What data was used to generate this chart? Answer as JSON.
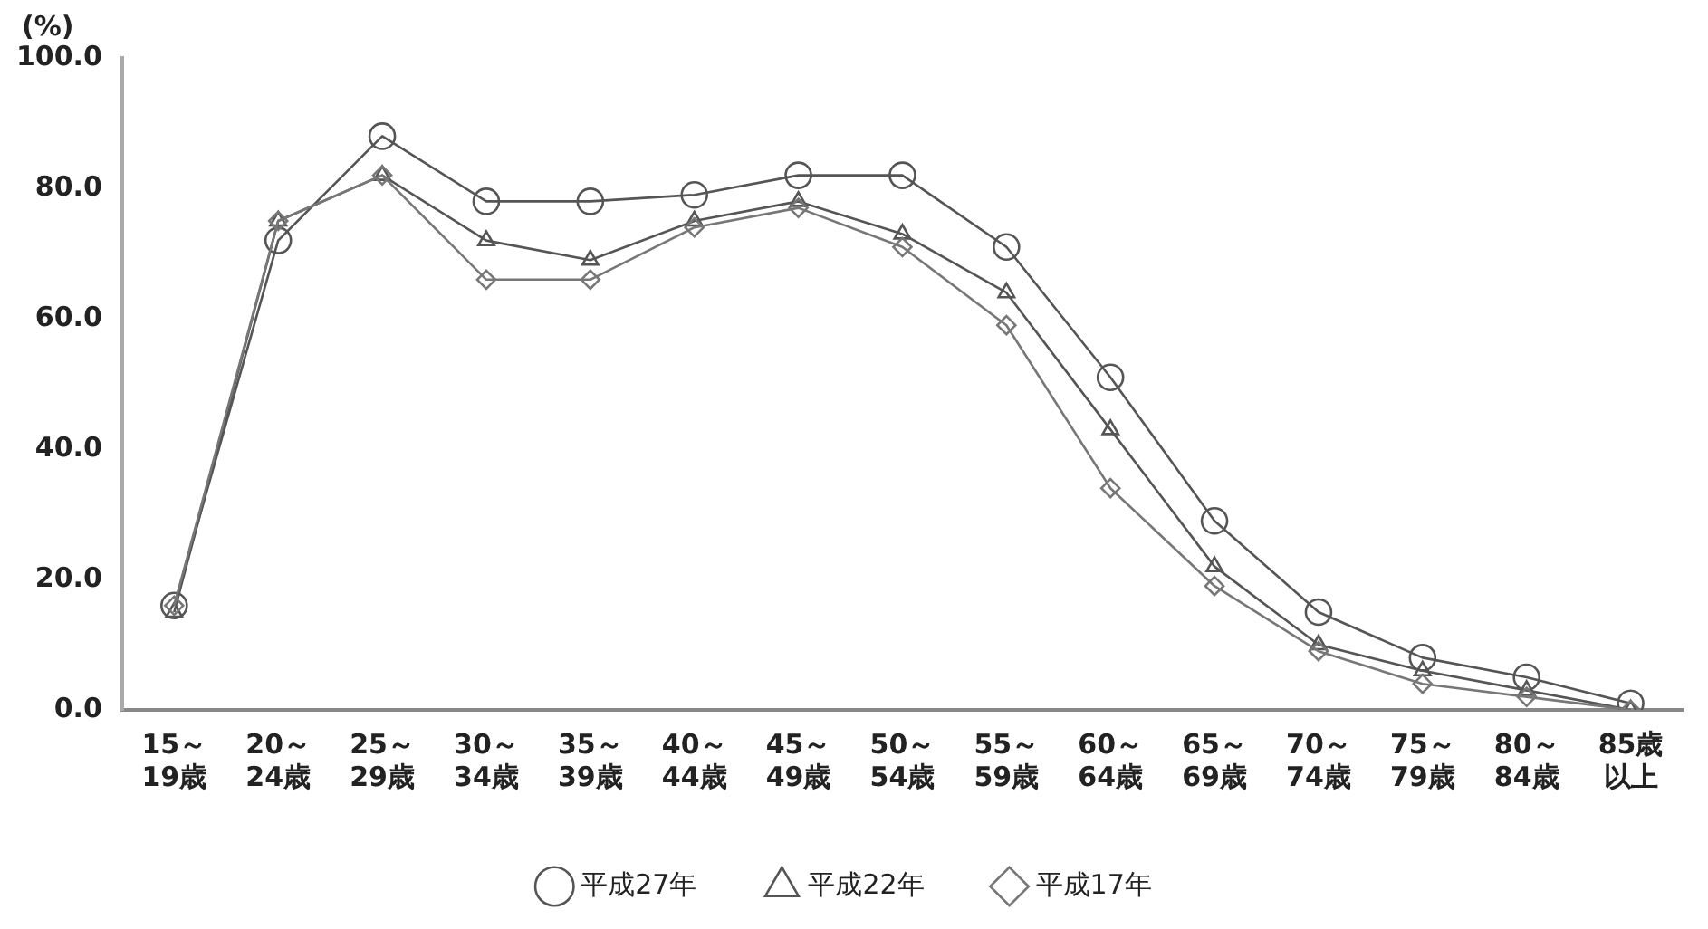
{
  "chart_data": {
    "type": "line",
    "ylabel": "(%)",
    "categories": [
      "15～19歳",
      "20～24歳",
      "25～29歳",
      "30～34歳",
      "35～39歳",
      "40～44歳",
      "45～49歳",
      "50～54歳",
      "55～59歳",
      "60～64歳",
      "65～69歳",
      "70～74歳",
      "75～79歳",
      "80～84歳",
      "85歳以上"
    ],
    "series": [
      {
        "name": "平成27年",
        "color": "#555555",
        "marker": "circle",
        "values": [
          16,
          72,
          88,
          78,
          78,
          79,
          82,
          82,
          71,
          51,
          29,
          15,
          8,
          5,
          1
        ]
      },
      {
        "name": "平成22年",
        "color": "#555555",
        "marker": "triangle",
        "values": [
          15,
          75,
          82,
          72,
          69,
          75,
          78,
          73,
          64,
          43,
          22,
          10,
          6,
          3,
          0
        ]
      },
      {
        "name": "平成17年",
        "color": "#777777",
        "marker": "diamond",
        "values": [
          16,
          75,
          82,
          66,
          66,
          74,
          77,
          71,
          59,
          34,
          19,
          9,
          4,
          2,
          0
        ]
      }
    ],
    "ylim": [
      0,
      100
    ],
    "yticks": [
      {
        "value": 0,
        "label": "0.0"
      },
      {
        "value": 20,
        "label": "20.0"
      },
      {
        "value": 40,
        "label": "40.0"
      },
      {
        "value": 60,
        "label": "60.0"
      },
      {
        "value": 80,
        "label": "80.0"
      },
      {
        "value": 100,
        "label": "100.0"
      }
    ],
    "grid": false,
    "legend": "bottom"
  }
}
